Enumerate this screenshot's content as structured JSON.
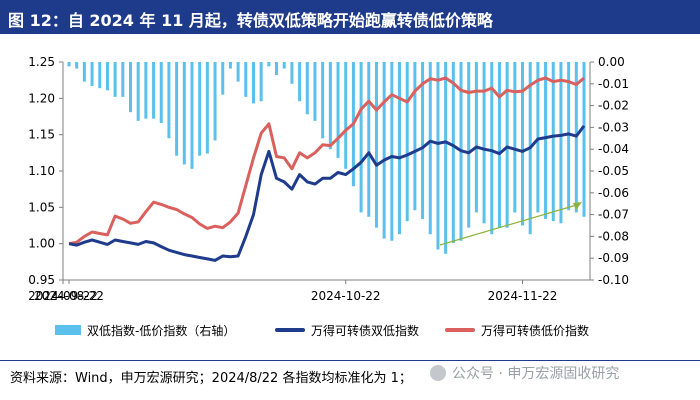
{
  "title": "图 12：自 2024 年 11 月起，转债双低策略开始跑赢转债低价策略",
  "source": "资料来源：Wind，申万宏源研究；2024/8/22 各指数均标准化为 1；",
  "watermark": "公众号 · 申万宏源固收研究",
  "colors": {
    "title_bg": "#1e3a8a",
    "bar": "#5bc0eb",
    "line_double_low": "#1f3b8c",
    "line_low_price": "#d9605d",
    "arrow": "#8db33a"
  },
  "chart_data": {
    "type": "line+bar",
    "legend": [
      "双低指数-低价指数（右轴）",
      "万得可转债双低指数",
      "万得可转债低价指数"
    ],
    "x_ticks": [
      "2024-08-22",
      "2024-09-22",
      "2024-10-22",
      "2024-11-22"
    ],
    "y_left": {
      "min": 0.95,
      "max": 1.25,
      "ticks": [
        "0.95",
        "1.00",
        "1.05",
        "1.10",
        "1.15",
        "1.20",
        "1.25"
      ]
    },
    "y_right": {
      "min": -0.1,
      "max": 0.0,
      "ticks": [
        "0.00",
        "-0.01",
        "-0.02",
        "-0.03",
        "-0.04",
        "-0.05",
        "-0.06",
        "-0.07",
        "-0.08",
        "-0.09",
        "-0.10"
      ]
    },
    "dates": [
      "2024-08-22",
      "2024-08-23",
      "2024-08-26",
      "2024-08-27",
      "2024-08-28",
      "2024-08-29",
      "2024-08-30",
      "2024-09-02",
      "2024-09-03",
      "2024-09-04",
      "2024-09-05",
      "2024-09-06",
      "2024-09-09",
      "2024-09-10",
      "2024-09-11",
      "2024-09-12",
      "2024-09-13",
      "2024-09-18",
      "2024-09-19",
      "2024-09-20",
      "2024-09-23",
      "2024-09-24",
      "2024-09-25",
      "2024-09-26",
      "2024-09-27",
      "2024-09-30",
      "2024-10-08",
      "2024-10-09",
      "2024-10-10",
      "2024-10-11",
      "2024-10-14",
      "2024-10-15",
      "2024-10-16",
      "2024-10-17",
      "2024-10-18",
      "2024-10-21",
      "2024-10-22",
      "2024-10-23",
      "2024-10-24",
      "2024-10-25",
      "2024-10-28",
      "2024-10-29",
      "2024-10-30",
      "2024-10-31",
      "2024-11-01",
      "2024-11-04",
      "2024-11-05",
      "2024-11-06",
      "2024-11-07",
      "2024-11-08",
      "2024-11-11",
      "2024-11-12",
      "2024-11-13",
      "2024-11-14",
      "2024-11-15",
      "2024-11-18",
      "2024-11-19",
      "2024-11-20",
      "2024-11-21",
      "2024-11-22",
      "2024-11-25",
      "2024-11-26",
      "2024-11-27",
      "2024-11-28",
      "2024-11-29",
      "2024-12-02",
      "2024-12-03",
      "2024-12-04"
    ],
    "series": [
      {
        "name": "双低指数-低价指数（右轴）",
        "type": "bar",
        "axis": "right",
        "values": [
          -0.002,
          -0.003,
          -0.009,
          -0.011,
          -0.012,
          -0.013,
          -0.016,
          -0.016,
          -0.023,
          -0.027,
          -0.026,
          -0.026,
          -0.028,
          -0.035,
          -0.043,
          -0.047,
          -0.049,
          -0.043,
          -0.042,
          -0.036,
          -0.015,
          -0.003,
          -0.009,
          -0.016,
          -0.019,
          -0.018,
          -0.002,
          -0.006,
          -0.003,
          -0.01,
          -0.018,
          -0.024,
          -0.027,
          -0.035,
          -0.04,
          -0.044,
          -0.049,
          -0.057,
          -0.069,
          -0.071,
          -0.076,
          -0.081,
          -0.082,
          -0.079,
          -0.073,
          -0.068,
          -0.072,
          -0.079,
          -0.086,
          -0.088,
          -0.083,
          -0.082,
          -0.076,
          -0.069,
          -0.074,
          -0.079,
          -0.076,
          -0.076,
          -0.069,
          -0.075,
          -0.079,
          -0.069,
          -0.072,
          -0.073,
          -0.074,
          -0.068,
          -0.069,
          -0.071
        ]
      },
      {
        "name": "万得可转债双低指数",
        "type": "line",
        "axis": "left",
        "values": [
          1.0,
          0.998,
          1.002,
          1.005,
          1.002,
          0.999,
          1.005,
          1.003,
          1.001,
          0.999,
          1.003,
          1.001,
          0.996,
          0.991,
          0.988,
          0.985,
          0.983,
          0.981,
          0.979,
          0.977,
          0.983,
          0.982,
          0.983,
          1.01,
          1.04,
          1.095,
          1.127,
          1.09,
          1.085,
          1.075,
          1.095,
          1.085,
          1.082,
          1.09,
          1.09,
          1.098,
          1.095,
          1.103,
          1.112,
          1.125,
          1.108,
          1.115,
          1.12,
          1.118,
          1.122,
          1.127,
          1.132,
          1.141,
          1.138,
          1.14,
          1.135,
          1.128,
          1.125,
          1.133,
          1.13,
          1.128,
          1.124,
          1.133,
          1.13,
          1.127,
          1.132,
          1.144,
          1.146,
          1.148,
          1.149,
          1.151,
          1.148,
          1.162
        ]
      },
      {
        "name": "万得可转债低价指数",
        "type": "line",
        "axis": "left",
        "values": [
          1.0,
          1.002,
          1.01,
          1.016,
          1.014,
          1.012,
          1.038,
          1.034,
          1.028,
          1.03,
          1.044,
          1.057,
          1.054,
          1.05,
          1.047,
          1.041,
          1.036,
          1.027,
          1.021,
          1.024,
          1.022,
          1.03,
          1.042,
          1.08,
          1.118,
          1.152,
          1.165,
          1.12,
          1.118,
          1.103,
          1.125,
          1.118,
          1.125,
          1.136,
          1.135,
          1.145,
          1.156,
          1.165,
          1.185,
          1.196,
          1.184,
          1.195,
          1.205,
          1.2,
          1.195,
          1.21,
          1.22,
          1.227,
          1.225,
          1.228,
          1.221,
          1.211,
          1.208,
          1.21,
          1.21,
          1.214,
          1.202,
          1.211,
          1.209,
          1.21,
          1.218,
          1.225,
          1.228,
          1.223,
          1.225,
          1.223,
          1.219,
          1.228
        ]
      }
    ],
    "grid": false,
    "legend_position": "bottom"
  }
}
